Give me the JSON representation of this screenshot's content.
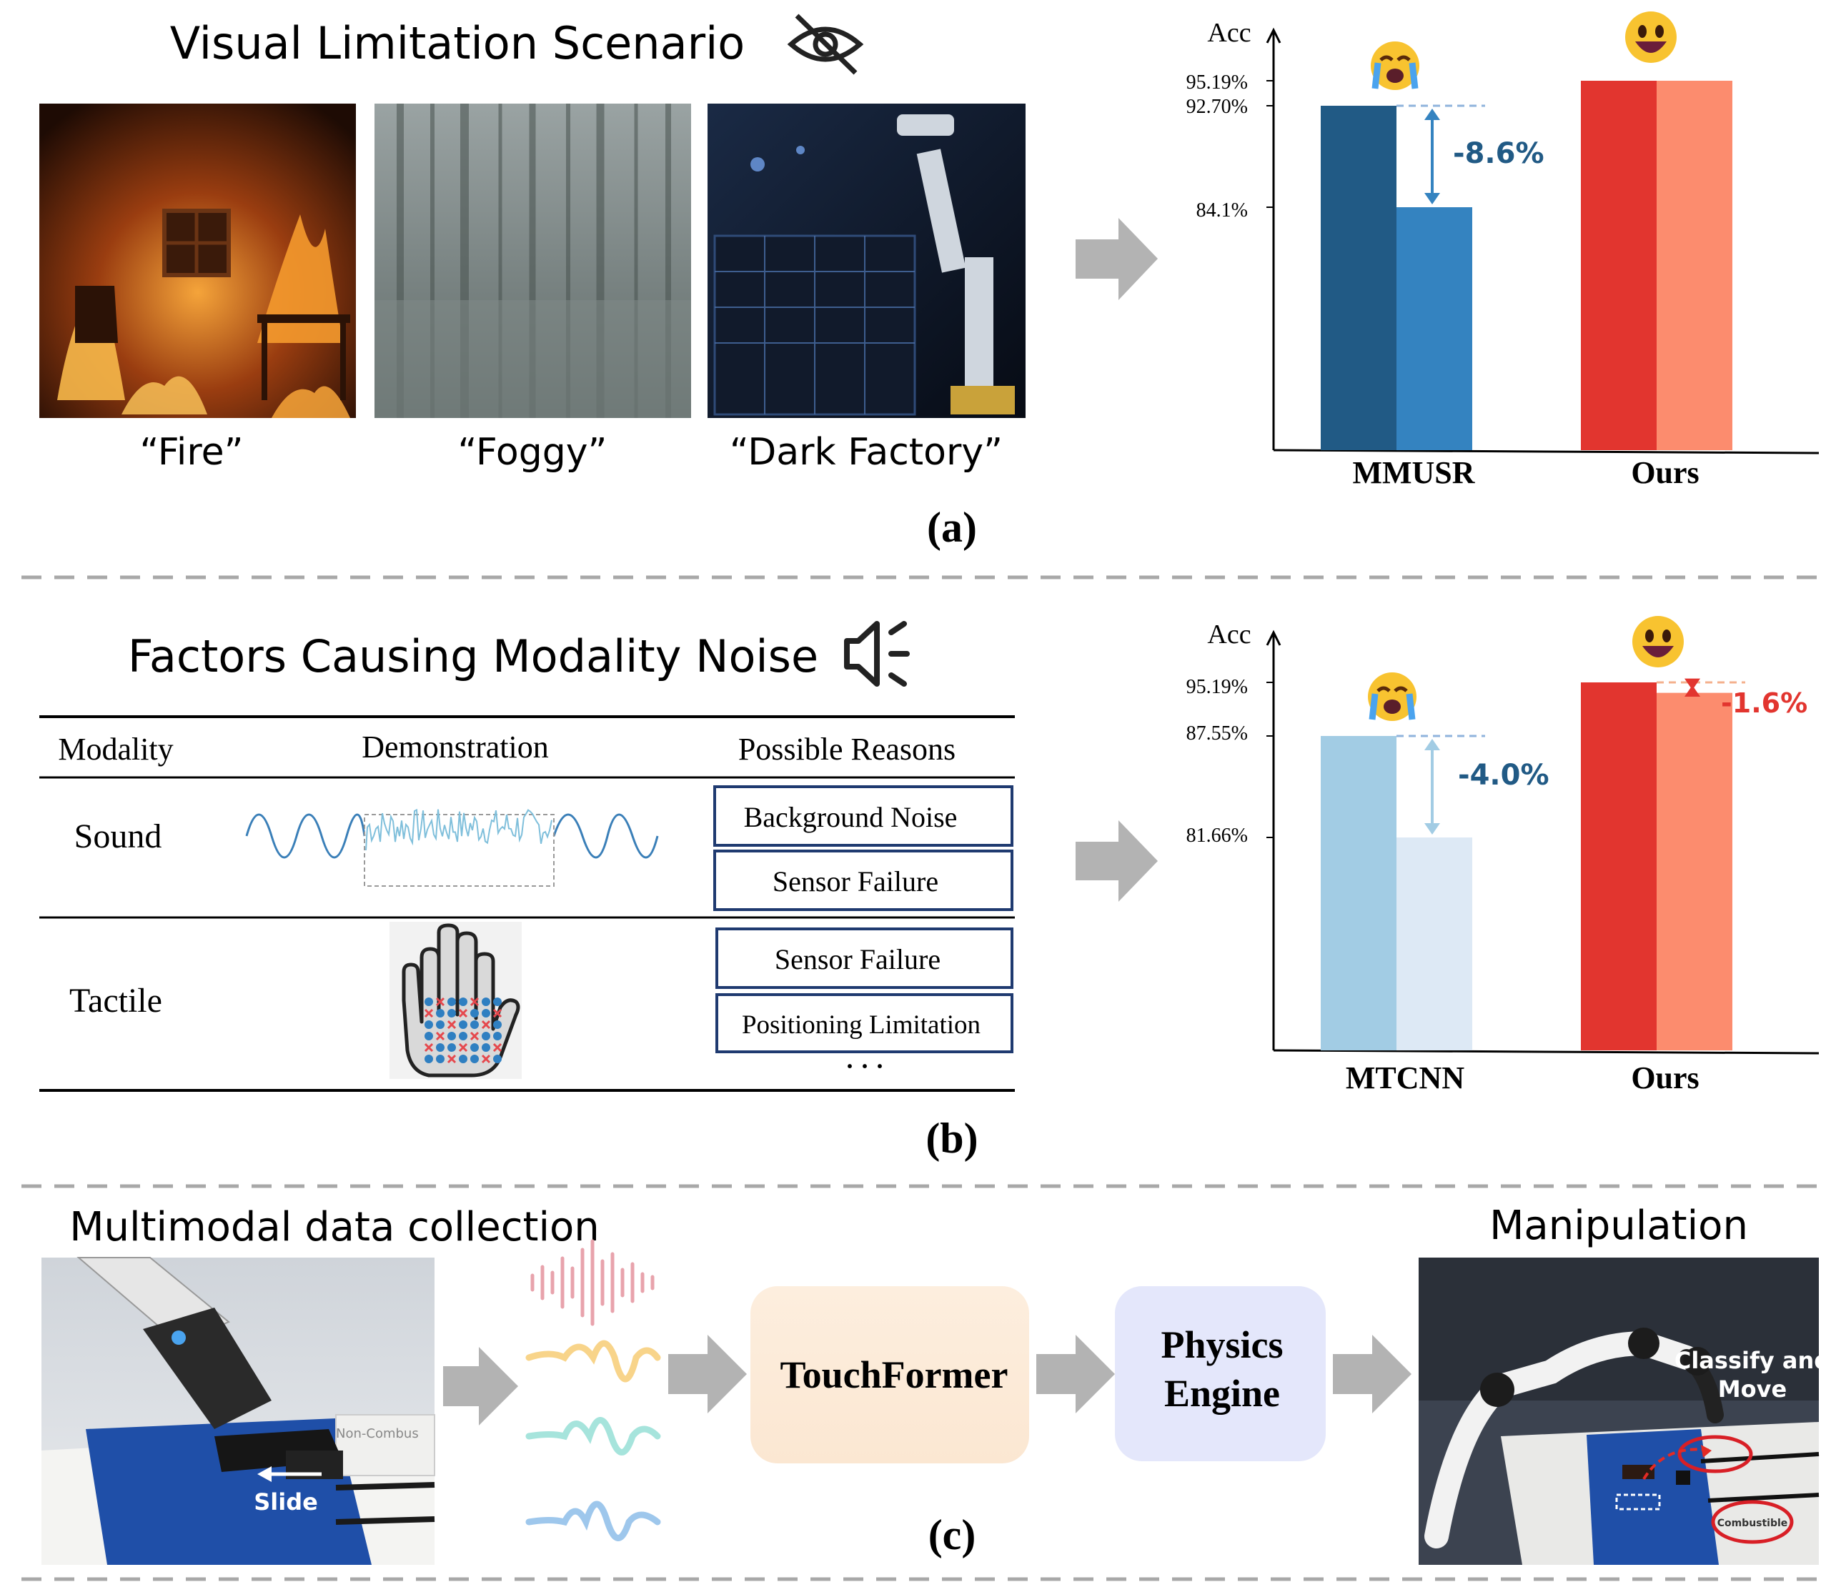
{
  "panel_a": {
    "title": "Visual Limitation Scenario",
    "scenarios": [
      {
        "label": "“Fire”"
      },
      {
        "label": "“Foggy”"
      },
      {
        "label": "“Dark Factory”"
      }
    ],
    "caption": "(a)",
    "chart": {
      "acc_label": "Acc",
      "method_labels": [
        "MMUSR",
        "Ours"
      ],
      "tick_labels": [
        "95.19%",
        "92.70%",
        "84.1%"
      ],
      "drop_label": "-8.6%"
    }
  },
  "panel_b": {
    "title": "Factors Causing Modality Noise",
    "table": {
      "headers": [
        "Modality",
        "Demonstration",
        "Possible Reasons"
      ],
      "rows": [
        {
          "modality": "Sound",
          "reasons": [
            "Background Noise",
            "Sensor Failure"
          ]
        },
        {
          "modality": "Tactile",
          "reasons": [
            "Sensor Failure",
            "Positioning Limitation"
          ]
        }
      ],
      "ellipsis": "· · ·"
    },
    "caption": "(b)",
    "chart": {
      "acc_label": "Acc",
      "method_labels": [
        "MTCNN",
        "Ours"
      ],
      "tick_labels": [
        "95.19%",
        "87.55%",
        "81.66%"
      ],
      "drop_labels": [
        "-4.0%",
        "-1.6%"
      ]
    }
  },
  "panel_c": {
    "left_title": "Multimodal data collection",
    "slide_label": "Slide",
    "photo_sign": "Non-Combus",
    "box1_label": "TouchFormer",
    "box2_label_line1": "Physics",
    "box2_label_line2": "Engine",
    "right_title": "Manipulation",
    "classify_line1": "Classify and",
    "classify_line2": "Move",
    "combustible_label": "Combustible",
    "caption": "(c)"
  },
  "chart_data": [
    {
      "type": "bar",
      "ylabel": "Acc",
      "categories": [
        "MMUSR",
        "Ours"
      ],
      "series": [
        {
          "values": [
            92.7,
            95.19
          ]
        },
        {
          "values": [
            84.1,
            95.19
          ]
        }
      ],
      "tick_values": [
        84.1,
        92.7,
        95.19
      ],
      "annotations": [
        "-8.6%"
      ],
      "colors": [
        "#215a85",
        "#3483c0",
        "#e2352f",
        "#fc8c6e"
      ]
    },
    {
      "type": "bar",
      "ylabel": "Acc",
      "categories": [
        "MTCNN",
        "Ours"
      ],
      "series": [
        {
          "values": [
            87.55,
            95.19
          ]
        },
        {
          "values": [
            81.66,
            93.7
          ]
        }
      ],
      "tick_values": [
        81.66,
        87.55,
        95.19
      ],
      "annotations": [
        "-4.0%",
        "-1.6%"
      ],
      "colors": [
        "#a2cce4",
        "#dde9f5",
        "#e2352f",
        "#fc8c6e"
      ]
    }
  ]
}
